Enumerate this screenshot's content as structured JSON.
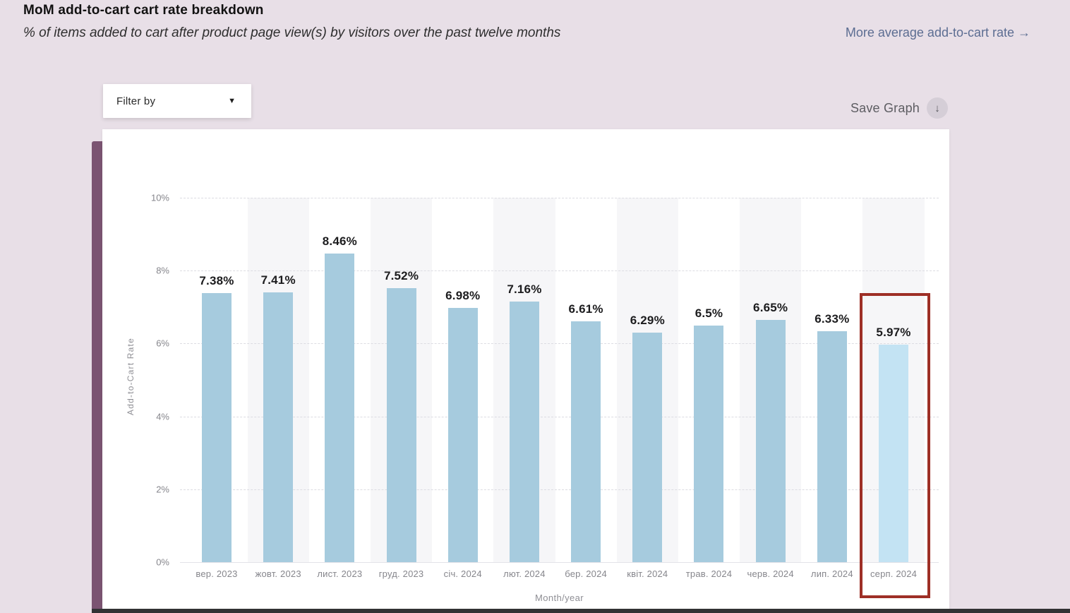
{
  "header": {
    "title": "MoM add-to-cart cart rate breakdown",
    "subtitle": "% of items added to cart after product page view(s) by visitors over the past twelve months",
    "link_label": "More average add-to-cart rate →"
  },
  "toolbar": {
    "filter_label": "Filter by",
    "save_label": "Save Graph"
  },
  "icons": {
    "dropdown_caret": "▼",
    "save_arrow": "↓"
  },
  "chart_data": {
    "type": "bar",
    "title": "MoM add-to-cart cart rate breakdown",
    "categories": [
      "вер. 2023",
      "жовт. 2023",
      "лист. 2023",
      "груд. 2023",
      "січ. 2024",
      "лют. 2024",
      "бер. 2024",
      "квіт. 2024",
      "трав. 2024",
      "черв. 2024",
      "лип. 2024",
      "серп. 2024"
    ],
    "values": [
      7.38,
      7.41,
      8.46,
      7.52,
      6.98,
      7.16,
      6.61,
      6.29,
      6.5,
      6.65,
      6.33,
      5.97
    ],
    "value_labels": [
      "7.38%",
      "7.41%",
      "8.46%",
      "7.52%",
      "6.98%",
      "7.16%",
      "6.61%",
      "6.29%",
      "6.5%",
      "6.65%",
      "6.33%",
      "5.97%"
    ],
    "xlabel": "Month/year",
    "ylabel": "Add-to-Cart Rate",
    "ytick_labels": [
      "0%",
      "2%",
      "4%",
      "6%",
      "8%",
      "10%"
    ],
    "ytick_values": [
      0,
      2,
      4,
      6,
      8,
      10
    ],
    "ylim": [
      0,
      10
    ],
    "grid": "dashed-horizontal",
    "banded_columns": "even",
    "highlight_index": 11,
    "colors": {
      "bar": "#a6cbde",
      "highlight_bar": "#c3e3f3",
      "highlight_outline": "#9e2f26",
      "column_band": "#f6f6f8",
      "link": "#5c6d92",
      "side_strip": "#7b5472",
      "background": "#e8dfe7"
    }
  }
}
